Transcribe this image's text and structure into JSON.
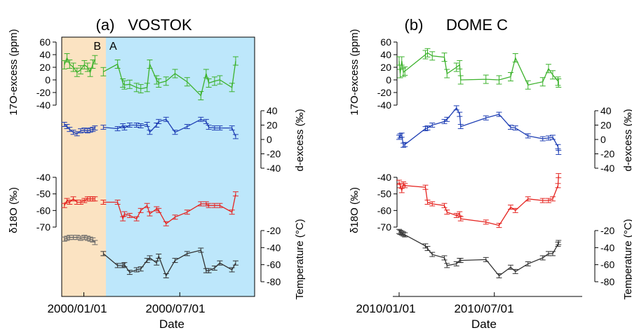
{
  "panels": [
    {
      "letter": "(a)",
      "title": "VOSTOK",
      "region_b_label": "B",
      "region_a_label": "A",
      "region_b_color": "#fbe3c2",
      "region_a_color": "#bde7fb",
      "x_tick_labels": [
        "2000/01/01",
        "2000/07/01"
      ],
      "x_label": "Date",
      "axes": {
        "o17_label": "17O-excess (ppm)",
        "o17_ticks": [
          "60",
          "40",
          "20",
          "0",
          "-20",
          "-40"
        ],
        "dex_label": "d-excess (‰)",
        "dex_ticks": [
          "40",
          "20",
          "0",
          "-20",
          "-40"
        ],
        "d18_label": "δ18O (‰)",
        "d18_ticks": [
          "-40",
          "-50",
          "-60",
          "-70"
        ],
        "temp_label": "Temperature (°C)",
        "temp_ticks": [
          "-20",
          "-40",
          "-60",
          "-80"
        ]
      }
    },
    {
      "letter": "(b)",
      "title": "DOME C",
      "x_tick_labels": [
        "2010/01/01",
        "2010/07/01"
      ],
      "x_label": "Date",
      "axes": {
        "o17_label": "17O-excess (ppm)",
        "o17_ticks": [
          "60",
          "40",
          "20",
          "0",
          "-20",
          "-40"
        ],
        "dex_label": "d-excess (‰)",
        "dex_ticks": [
          "40",
          "20",
          "0",
          "-20",
          "-40"
        ],
        "d18_label": "δ18O (‰)",
        "d18_ticks": [
          "-40",
          "-50",
          "-60",
          "-70"
        ],
        "temp_label": "Temperature (°C)",
        "temp_ticks": [
          "-20",
          "-40",
          "-60",
          "-80"
        ]
      }
    }
  ],
  "colors": {
    "o17": "#3cb22c",
    "dex": "#1f3fb4",
    "d18": "#e52521",
    "temp": "#333333",
    "temp_b": "#666666"
  },
  "chart_data": [
    {
      "type": "line",
      "title": "VOSTOK",
      "xlabel": "Date",
      "xlim": [
        "1999-11-20",
        "2000-11-20"
      ],
      "series": [
        {
          "key": "o17",
          "region": "B",
          "x": [
            "1999-11-25",
            "1999-11-30",
            "1999-12-05",
            "1999-12-12",
            "1999-12-19",
            "1999-12-26",
            "2000-01-02",
            "2000-01-08",
            "2000-01-13",
            "2000-01-18",
            "2000-01-22"
          ],
          "y": [
            24,
            35,
            25,
            20,
            12,
            16,
            24,
            20,
            12,
            25,
            32
          ]
        },
        {
          "key": "o17",
          "region": "A",
          "x": [
            "2000-02-07",
            "2000-03-05",
            "2000-03-15",
            "2000-03-18",
            "2000-03-28",
            "2000-04-10",
            "2000-04-18",
            "2000-04-30",
            "2000-05-05",
            "2000-05-18",
            "2000-05-22",
            "2000-06-05",
            "2000-06-22",
            "2000-07-15",
            "2000-08-10",
            "2000-08-20",
            "2000-08-25",
            "2000-09-05",
            "2000-09-15",
            "2000-10-08",
            "2000-10-15"
          ],
          "y": [
            13,
            25,
            -5,
            -8,
            -7,
            -12,
            -14,
            -12,
            25,
            0,
            -5,
            -2,
            10,
            -3,
            -25,
            10,
            -5,
            -2,
            0,
            -12,
            30
          ]
        },
        {
          "key": "dex",
          "region": "B",
          "x": [
            "1999-11-25",
            "1999-11-30",
            "1999-12-05",
            "1999-12-12",
            "1999-12-19",
            "1999-12-26",
            "2000-01-02",
            "2000-01-08",
            "2000-01-13",
            "2000-01-18",
            "2000-01-22"
          ],
          "y": [
            21,
            18,
            14,
            10,
            8,
            12,
            13,
            12,
            13,
            14,
            16
          ]
        },
        {
          "key": "dex",
          "region": "A",
          "x": [
            "2000-02-07",
            "2000-03-05",
            "2000-03-15",
            "2000-03-18",
            "2000-03-28",
            "2000-04-10",
            "2000-04-18",
            "2000-04-30",
            "2000-05-05",
            "2000-05-18",
            "2000-05-22",
            "2000-06-05",
            "2000-06-22",
            "2000-07-15",
            "2000-08-10",
            "2000-08-20",
            "2000-08-25",
            "2000-09-05",
            "2000-09-15",
            "2000-10-08",
            "2000-10-15"
          ],
          "y": [
            17,
            15,
            19,
            16,
            20,
            20,
            19,
            21,
            10,
            20,
            25,
            28,
            10,
            18,
            28,
            25,
            17,
            16,
            16,
            16,
            4
          ]
        },
        {
          "key": "d18",
          "region": "B",
          "x": [
            "1999-11-25",
            "1999-11-30",
            "1999-12-05",
            "1999-12-12",
            "1999-12-19",
            "1999-12-26",
            "2000-01-02",
            "2000-01-08",
            "2000-01-13",
            "2000-01-18",
            "2000-01-22"
          ],
          "y": [
            -57,
            -54,
            -55,
            -53,
            -55,
            -55,
            -54,
            -53,
            -53,
            -53,
            -53
          ]
        },
        {
          "key": "d18",
          "region": "A",
          "x": [
            "2000-02-07",
            "2000-03-05",
            "2000-03-15",
            "2000-03-18",
            "2000-03-28",
            "2000-04-10",
            "2000-04-18",
            "2000-04-30",
            "2000-05-05",
            "2000-05-18",
            "2000-05-22",
            "2000-06-05",
            "2000-06-22",
            "2000-07-15",
            "2000-08-10",
            "2000-08-20",
            "2000-08-25",
            "2000-09-05",
            "2000-09-15",
            "2000-10-08",
            "2000-10-15"
          ],
          "y": [
            -55,
            -55,
            -65,
            -62,
            -63,
            -65,
            -60,
            -57,
            -62,
            -59,
            -60,
            -68,
            -64,
            -61,
            -56,
            -56,
            -57,
            -57,
            -57,
            -61,
            -50
          ]
        },
        {
          "key": "temp",
          "region": "B",
          "x": [
            "1999-11-25",
            "1999-11-30",
            "1999-12-05",
            "1999-12-12",
            "1999-12-19",
            "1999-12-26",
            "2000-01-02",
            "2000-01-08",
            "2000-01-13",
            "2000-01-18",
            "2000-01-22"
          ],
          "y": [
            -30,
            -29,
            -28,
            -28,
            -28,
            -29,
            -28,
            -29,
            -30,
            -31,
            -34
          ]
        },
        {
          "key": "temp",
          "region": "A",
          "x": [
            "2000-02-07",
            "2000-03-05",
            "2000-03-15",
            "2000-03-18",
            "2000-03-28",
            "2000-04-10",
            "2000-04-18",
            "2000-04-30",
            "2000-05-05",
            "2000-05-18",
            "2000-05-22",
            "2000-06-05",
            "2000-06-22",
            "2000-07-15",
            "2000-08-10",
            "2000-08-20",
            "2000-08-25",
            "2000-09-05",
            "2000-09-15",
            "2000-10-08",
            "2000-10-15"
          ],
          "y": [
            -47,
            -61,
            -61,
            -60,
            -69,
            -66,
            -65,
            -55,
            -52,
            -58,
            -50,
            -73,
            -55,
            -47,
            -43,
            -67,
            -67,
            -64,
            -58,
            -66,
            -58
          ]
        }
      ]
    },
    {
      "type": "line",
      "title": "DOME C",
      "xlabel": "Date",
      "xlim": [
        "2009-12-20",
        "2010-12-15"
      ],
      "series": [
        {
          "key": "o17",
          "x": [
            "2010-01-01",
            "2010-01-03",
            "2010-01-06",
            "2010-01-09",
            "2010-01-12",
            "2010-02-20",
            "2010-02-24",
            "2010-03-05",
            "2010-03-28",
            "2010-04-02",
            "2010-04-20",
            "2010-04-26",
            "2010-04-28",
            "2010-06-15",
            "2010-07-10",
            "2010-08-01",
            "2010-08-10",
            "2010-09-03",
            "2010-10-01",
            "2010-10-12",
            "2010-10-20",
            "2010-10-30",
            "2010-10-31"
          ],
          "y": [
            30,
            10,
            30,
            12,
            14,
            40,
            43,
            38,
            36,
            10,
            20,
            24,
            0,
            1,
            0,
            5,
            35,
            -8,
            -3,
            18,
            8,
            -2,
            -5
          ]
        },
        {
          "key": "dex",
          "x": [
            "2010-01-01",
            "2010-01-03",
            "2010-01-06",
            "2010-01-09",
            "2010-01-12",
            "2010-02-20",
            "2010-02-24",
            "2010-03-05",
            "2010-03-28",
            "2010-04-02",
            "2010-04-20",
            "2010-04-26",
            "2010-04-28",
            "2010-06-15",
            "2010-07-10",
            "2010-08-01",
            "2010-08-10",
            "2010-09-03",
            "2010-10-01",
            "2010-10-12",
            "2010-10-20",
            "2010-10-30",
            "2010-10-31"
          ],
          "y": [
            3,
            5,
            6,
            -8,
            -7,
            15,
            16,
            20,
            25,
            28,
            44,
            35,
            18,
            30,
            35,
            17,
            16,
            5,
            1,
            2,
            3,
            -10,
            -18
          ]
        },
        {
          "key": "d18",
          "x": [
            "2010-01-01",
            "2010-01-03",
            "2010-01-06",
            "2010-01-09",
            "2010-01-12",
            "2010-02-20",
            "2010-02-24",
            "2010-03-05",
            "2010-03-28",
            "2010-04-02",
            "2010-04-20",
            "2010-04-26",
            "2010-04-28",
            "2010-06-15",
            "2010-07-10",
            "2010-08-01",
            "2010-08-10",
            "2010-09-03",
            "2010-10-01",
            "2010-10-12",
            "2010-10-20",
            "2010-10-30",
            "2010-10-31"
          ],
          "y": [
            -43,
            -45,
            -48,
            -44,
            -45,
            -46,
            -55,
            -56,
            -57,
            -61,
            -63,
            -62,
            -65,
            -67,
            -69,
            -58,
            -60,
            -53,
            -54,
            -54,
            -53,
            -45,
            -39
          ]
        },
        {
          "key": "temp",
          "x": [
            "2010-01-01",
            "2010-01-03",
            "2010-01-06",
            "2010-01-09",
            "2010-01-12",
            "2010-02-20",
            "2010-02-24",
            "2010-03-05",
            "2010-03-28",
            "2010-04-02",
            "2010-04-20",
            "2010-04-26",
            "2010-04-28",
            "2010-06-15",
            "2010-07-10",
            "2010-08-01",
            "2010-08-10",
            "2010-09-03",
            "2010-10-01",
            "2010-10-12",
            "2010-10-20",
            "2010-10-30",
            "2010-10-31"
          ],
          "y": [
            -21,
            -22,
            -23,
            -24,
            -25,
            -38,
            -41,
            -48,
            -52,
            -61,
            -59,
            -55,
            -55,
            -54,
            -73,
            -63,
            -68,
            -59,
            -52,
            -47,
            -47,
            -36,
            -34
          ]
        }
      ]
    }
  ]
}
